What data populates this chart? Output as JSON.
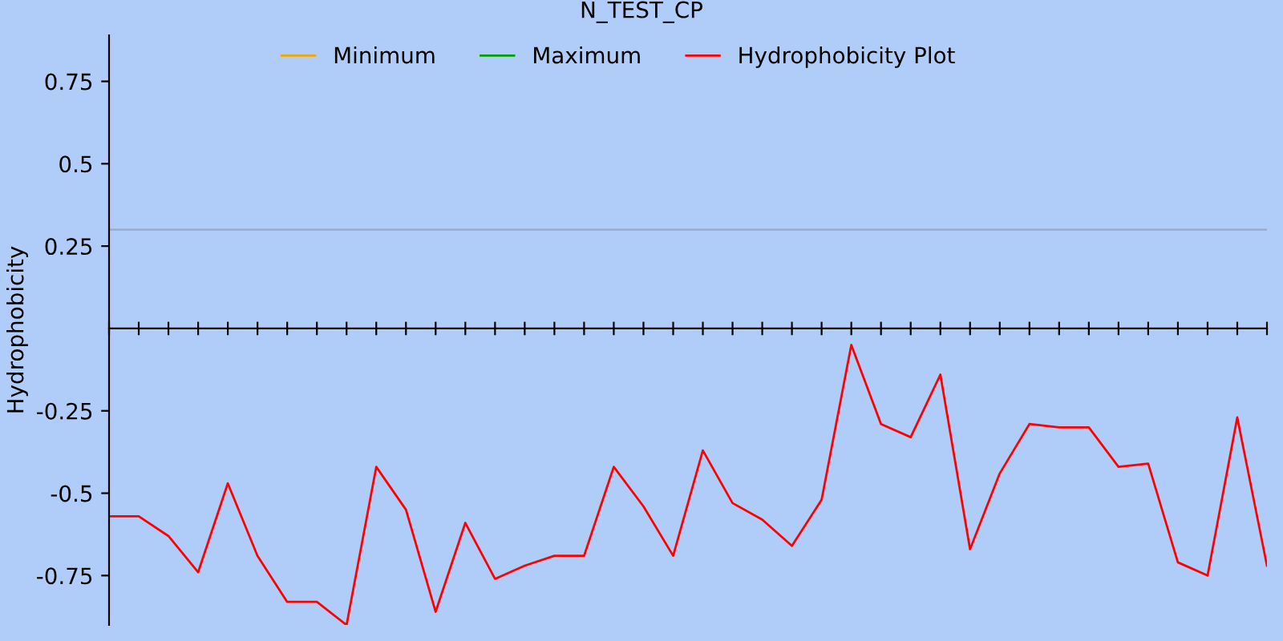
{
  "chart_data": {
    "type": "line",
    "title": "N_TEST_CP",
    "ylabel": "Hydrophobicity",
    "categories": [
      null,
      null,
      null,
      null,
      null,
      null,
      null,
      null,
      null,
      null,
      null,
      null,
      null,
      null,
      null,
      null,
      null,
      null,
      null,
      null,
      null,
      null,
      null,
      null,
      null,
      null,
      null,
      null,
      null,
      null,
      null,
      null,
      null,
      null,
      null,
      null,
      null,
      null,
      null,
      null
    ],
    "series": [
      {
        "name": "Minimum",
        "color": "#f0a800",
        "values": [
          null,
          null,
          null,
          null,
          null,
          null,
          null,
          null,
          null,
          null,
          null,
          null,
          null,
          null,
          null,
          null,
          null,
          null,
          null,
          null,
          null,
          null,
          null,
          null,
          null,
          null,
          null,
          null,
          null,
          null,
          null,
          null,
          null,
          null,
          null,
          null,
          null,
          null,
          null,
          null
        ]
      },
      {
        "name": "Maximum",
        "color": "#00a000",
        "values": [
          null,
          null,
          null,
          null,
          null,
          null,
          null,
          null,
          null,
          null,
          null,
          null,
          null,
          null,
          null,
          null,
          null,
          null,
          null,
          null,
          null,
          null,
          null,
          null,
          null,
          null,
          null,
          null,
          null,
          null,
          null,
          null,
          null,
          null,
          null,
          null,
          null,
          null,
          null,
          null
        ]
      },
      {
        "name": "Hydrophobicity Plot",
        "color": "#ff0000",
        "values": [
          -0.57,
          -0.57,
          -0.63,
          -0.74,
          -0.47,
          -0.69,
          -0.83,
          -0.83,
          -0.9,
          -0.42,
          -0.55,
          -0.86,
          -0.59,
          -0.76,
          -0.72,
          -0.69,
          -0.69,
          -0.42,
          -0.54,
          -0.69,
          -0.37,
          -0.53,
          -0.58,
          -0.66,
          -0.52,
          -0.05,
          -0.29,
          -0.33,
          -0.14,
          -0.67,
          -0.44,
          -0.29,
          -0.3,
          -0.3,
          -0.42,
          -0.41,
          -0.71,
          -0.75,
          -0.27,
          -0.72
        ]
      }
    ],
    "ylim": [
      -0.9,
      0.89
    ],
    "yticks": [
      -0.75,
      -0.5,
      -0.25,
      0.25,
      0.5,
      0.75
    ],
    "ref_lines": [
      {
        "axis": "y",
        "value": 0.3,
        "color": "#98a8c8"
      }
    ],
    "legend": "top",
    "grid": false,
    "marker": "none",
    "line_style": "solid"
  }
}
